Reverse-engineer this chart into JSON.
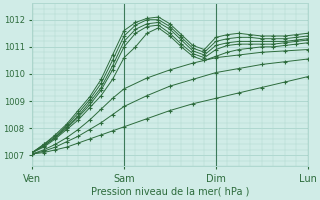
{
  "background_color": "#d0ece7",
  "grid_color": "#b0d8d0",
  "line_color": "#2d6b3c",
  "plot_bg": "#d0ece7",
  "ylabel_vals": [
    1007,
    1008,
    1009,
    1010,
    1011,
    1012
  ],
  "xlim": [
    0,
    72
  ],
  "ylim": [
    1006.6,
    1012.6
  ],
  "xlabel": "Pression niveau de la mer( hPa )",
  "xtick_positions": [
    0,
    24,
    48,
    72
  ],
  "xtick_labels": [
    "Ven",
    "Sam",
    "Dim",
    "Lun"
  ],
  "lines": [
    {
      "x": [
        0,
        3,
        6,
        9,
        12,
        15,
        18,
        21,
        24,
        30,
        36,
        42,
        48,
        54,
        60,
        66,
        72
      ],
      "y": [
        1007.05,
        1007.1,
        1007.2,
        1007.3,
        1007.45,
        1007.6,
        1007.75,
        1007.9,
        1008.05,
        1008.35,
        1008.65,
        1008.9,
        1009.1,
        1009.3,
        1009.5,
        1009.7,
        1009.9
      ]
    },
    {
      "x": [
        0,
        3,
        6,
        9,
        12,
        15,
        18,
        21,
        24,
        30,
        36,
        42,
        48,
        54,
        60,
        66,
        72
      ],
      "y": [
        1007.05,
        1007.15,
        1007.3,
        1007.5,
        1007.7,
        1007.95,
        1008.2,
        1008.5,
        1008.8,
        1009.2,
        1009.55,
        1009.8,
        1010.05,
        1010.2,
        1010.35,
        1010.45,
        1010.55
      ]
    },
    {
      "x": [
        0,
        3,
        6,
        9,
        12,
        15,
        18,
        21,
        24,
        30,
        36,
        42,
        48,
        54,
        60,
        66,
        72
      ],
      "y": [
        1007.05,
        1007.2,
        1007.4,
        1007.65,
        1007.95,
        1008.3,
        1008.7,
        1009.1,
        1009.45,
        1009.85,
        1010.15,
        1010.4,
        1010.6,
        1010.7,
        1010.8,
        1010.85,
        1010.9
      ]
    },
    {
      "x": [
        0,
        3,
        6,
        9,
        12,
        15,
        18,
        21,
        24,
        27,
        30,
        33,
        36,
        39,
        42,
        45,
        48,
        51,
        54,
        57,
        60,
        63,
        66,
        69,
        72
      ],
      "y": [
        1007.1,
        1007.3,
        1007.6,
        1007.95,
        1008.3,
        1008.75,
        1009.2,
        1009.8,
        1010.6,
        1011.0,
        1011.5,
        1011.7,
        1011.4,
        1011.0,
        1010.65,
        1010.5,
        1010.65,
        1010.8,
        1010.9,
        1010.95,
        1011.0,
        1011.0,
        1011.05,
        1011.1,
        1011.15
      ]
    },
    {
      "x": [
        0,
        3,
        6,
        9,
        12,
        15,
        18,
        21,
        24,
        27,
        30,
        33,
        36,
        39,
        42,
        45,
        48,
        51,
        54,
        57,
        60,
        63,
        66,
        69,
        72
      ],
      "y": [
        1007.1,
        1007.35,
        1007.65,
        1008.0,
        1008.4,
        1008.85,
        1009.4,
        1010.15,
        1011.0,
        1011.5,
        1011.75,
        1011.8,
        1011.5,
        1011.1,
        1010.75,
        1010.6,
        1010.9,
        1011.05,
        1011.1,
        1011.1,
        1011.1,
        1011.1,
        1011.15,
        1011.2,
        1011.25
      ]
    },
    {
      "x": [
        0,
        3,
        6,
        9,
        12,
        15,
        18,
        21,
        24,
        27,
        30,
        33,
        36,
        39,
        42,
        45,
        48,
        51,
        54,
        57,
        60,
        63,
        66,
        69,
        72
      ],
      "y": [
        1007.1,
        1007.35,
        1007.65,
        1008.05,
        1008.45,
        1008.95,
        1009.5,
        1010.3,
        1011.2,
        1011.65,
        1011.85,
        1011.9,
        1011.65,
        1011.25,
        1010.85,
        1010.7,
        1011.05,
        1011.15,
        1011.2,
        1011.2,
        1011.2,
        1011.2,
        1011.2,
        1011.25,
        1011.3
      ]
    },
    {
      "x": [
        0,
        3,
        6,
        9,
        12,
        15,
        18,
        21,
        24,
        27,
        30,
        33,
        36,
        39,
        42,
        45,
        48,
        51,
        54,
        57,
        60,
        63,
        66,
        69,
        72
      ],
      "y": [
        1007.1,
        1007.4,
        1007.7,
        1008.1,
        1008.55,
        1009.05,
        1009.65,
        1010.5,
        1011.4,
        1011.8,
        1012.0,
        1012.0,
        1011.75,
        1011.35,
        1010.95,
        1010.8,
        1011.2,
        1011.3,
        1011.35,
        1011.35,
        1011.3,
        1011.3,
        1011.3,
        1011.35,
        1011.4
      ]
    },
    {
      "x": [
        0,
        3,
        6,
        9,
        12,
        15,
        18,
        21,
        24,
        27,
        30,
        33,
        36,
        39,
        42,
        45,
        48,
        51,
        54,
        57,
        60,
        63,
        66,
        69,
        72
      ],
      "y": [
        1007.1,
        1007.4,
        1007.75,
        1008.15,
        1008.65,
        1009.15,
        1009.8,
        1010.7,
        1011.6,
        1011.9,
        1012.05,
        1012.1,
        1011.85,
        1011.45,
        1011.05,
        1010.9,
        1011.35,
        1011.45,
        1011.5,
        1011.45,
        1011.4,
        1011.4,
        1011.4,
        1011.45,
        1011.5
      ]
    }
  ]
}
